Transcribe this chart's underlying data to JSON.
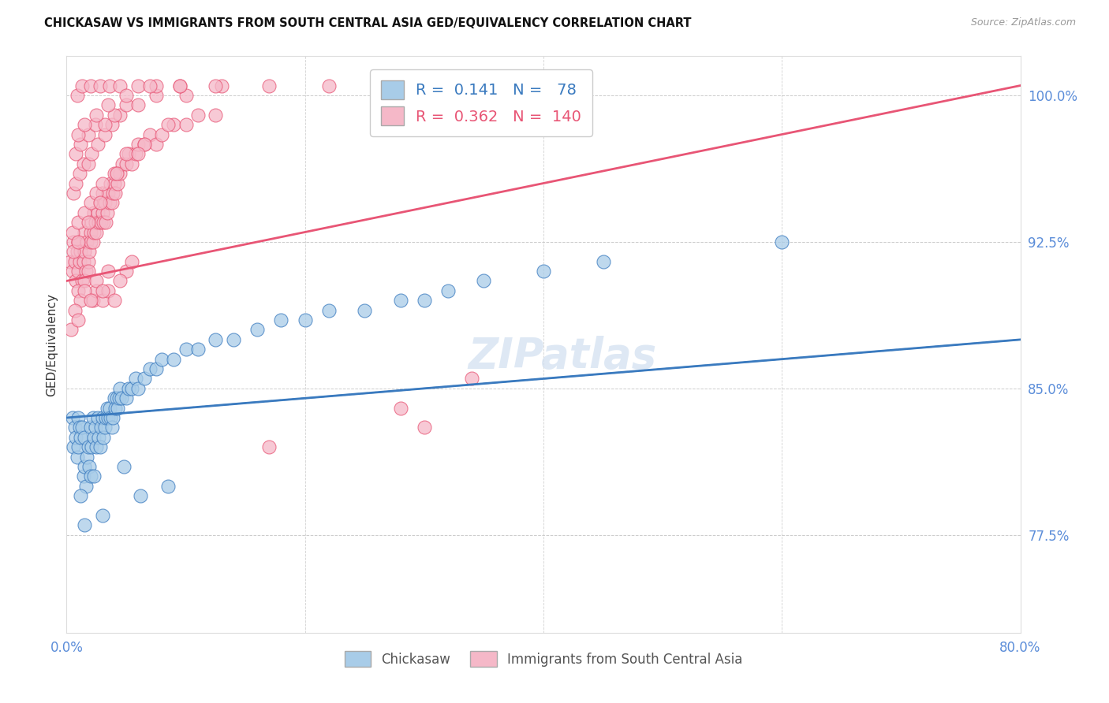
{
  "title": "CHICKASAW VS IMMIGRANTS FROM SOUTH CENTRAL ASIA GED/EQUIVALENCY CORRELATION CHART",
  "source": "Source: ZipAtlas.com",
  "ylabel": "GED/Equivalency",
  "yticks": [
    77.5,
    85.0,
    92.5,
    100.0
  ],
  "ytick_labels": [
    "77.5%",
    "85.0%",
    "92.5%",
    "100.0%"
  ],
  "legend_label1": "Chickasaw",
  "legend_label2": "Immigrants from South Central Asia",
  "R1": 0.141,
  "N1": 78,
  "R2": 0.362,
  "N2": 140,
  "blue_color": "#a8cce8",
  "pink_color": "#f5b8c8",
  "blue_line_color": "#3a7abf",
  "pink_line_color": "#e85575",
  "dashed_line_color": "#7bafd4",
  "xmin": 0.0,
  "xmax": 80.0,
  "ymin": 72.5,
  "ymax": 102.0,
  "blue_scatter_x": [
    0.5,
    0.6,
    0.7,
    0.8,
    0.9,
    1.0,
    1.0,
    1.1,
    1.2,
    1.3,
    1.4,
    1.5,
    1.5,
    1.6,
    1.7,
    1.8,
    1.9,
    2.0,
    2.0,
    2.1,
    2.2,
    2.3,
    2.4,
    2.5,
    2.6,
    2.7,
    2.8,
    2.9,
    3.0,
    3.1,
    3.2,
    3.3,
    3.4,
    3.5,
    3.6,
    3.7,
    3.8,
    3.9,
    4.0,
    4.1,
    4.2,
    4.3,
    4.4,
    4.5,
    4.6,
    5.0,
    5.2,
    5.5,
    5.8,
    6.0,
    6.5,
    7.0,
    7.5,
    8.0,
    9.0,
    10.0,
    11.0,
    12.5,
    14.0,
    16.0,
    18.0,
    20.0,
    22.0,
    25.0,
    28.0,
    30.0,
    32.0,
    35.0,
    40.0,
    45.0,
    1.2,
    1.5,
    2.3,
    3.0,
    4.8,
    6.2,
    8.5,
    60.0
  ],
  "blue_scatter_y": [
    83.5,
    82.0,
    83.0,
    82.5,
    81.5,
    82.0,
    83.5,
    83.0,
    82.5,
    83.0,
    80.5,
    81.0,
    82.5,
    80.0,
    81.5,
    82.0,
    81.0,
    80.5,
    83.0,
    82.0,
    83.5,
    82.5,
    83.0,
    82.0,
    83.5,
    82.5,
    82.0,
    83.0,
    83.5,
    82.5,
    83.0,
    83.5,
    84.0,
    83.5,
    84.0,
    83.5,
    83.0,
    83.5,
    84.5,
    84.0,
    84.5,
    84.0,
    84.5,
    85.0,
    84.5,
    84.5,
    85.0,
    85.0,
    85.5,
    85.0,
    85.5,
    86.0,
    86.0,
    86.5,
    86.5,
    87.0,
    87.0,
    87.5,
    87.5,
    88.0,
    88.5,
    88.5,
    89.0,
    89.0,
    89.5,
    89.5,
    90.0,
    90.5,
    91.0,
    91.5,
    79.5,
    78.0,
    80.5,
    78.5,
    81.0,
    79.5,
    80.0,
    92.5
  ],
  "pink_scatter_x": [
    0.3,
    0.5,
    0.6,
    0.7,
    0.8,
    0.9,
    1.0,
    1.0,
    1.1,
    1.2,
    1.3,
    1.4,
    1.5,
    1.5,
    1.6,
    1.7,
    1.8,
    1.9,
    2.0,
    2.0,
    2.1,
    2.2,
    2.3,
    2.3,
    2.4,
    2.5,
    2.6,
    2.7,
    2.8,
    2.9,
    3.0,
    3.0,
    3.1,
    3.2,
    3.3,
    3.4,
    3.5,
    3.6,
    3.7,
    3.8,
    3.9,
    4.0,
    4.1,
    4.2,
    4.3,
    4.5,
    4.7,
    5.0,
    5.2,
    5.5,
    5.8,
    6.0,
    6.5,
    7.0,
    7.5,
    8.0,
    9.0,
    10.0,
    11.0,
    12.5,
    1.0,
    1.2,
    1.5,
    1.8,
    2.2,
    2.5,
    3.0,
    3.5,
    4.0,
    5.0,
    0.6,
    0.8,
    1.1,
    1.4,
    1.8,
    2.1,
    2.6,
    3.2,
    3.8,
    4.5,
    0.4,
    0.7,
    1.0,
    1.5,
    2.0,
    2.5,
    3.0,
    3.5,
    4.5,
    5.5,
    0.5,
    1.0,
    1.5,
    2.0,
    2.5,
    3.0,
    4.0,
    5.0,
    6.5,
    8.5,
    0.8,
    1.2,
    1.8,
    2.4,
    3.2,
    4.0,
    5.0,
    6.0,
    7.5,
    10.0,
    0.9,
    1.3,
    2.0,
    2.8,
    3.6,
    4.5,
    6.0,
    7.5,
    9.5,
    13.0,
    1.0,
    1.5,
    2.5,
    3.5,
    5.0,
    7.0,
    9.5,
    12.5,
    17.0,
    22.0,
    0.6,
    1.0,
    1.8,
    2.8,
    4.2,
    6.0,
    28.0,
    34.0,
    30.0,
    17.0
  ],
  "pink_scatter_y": [
    91.5,
    91.0,
    92.5,
    91.5,
    90.5,
    92.0,
    92.5,
    91.0,
    91.5,
    92.0,
    90.5,
    91.5,
    92.0,
    93.0,
    91.0,
    92.5,
    91.5,
    92.0,
    93.0,
    92.5,
    93.5,
    92.5,
    93.0,
    94.0,
    93.5,
    93.0,
    94.0,
    93.5,
    94.5,
    93.5,
    94.0,
    95.0,
    93.5,
    94.5,
    93.5,
    94.0,
    95.0,
    94.5,
    95.5,
    94.5,
    95.0,
    95.5,
    95.0,
    96.0,
    95.5,
    96.0,
    96.5,
    96.5,
    97.0,
    96.5,
    97.0,
    97.5,
    97.5,
    98.0,
    97.5,
    98.0,
    98.5,
    98.5,
    99.0,
    99.0,
    90.0,
    89.5,
    90.5,
    91.0,
    89.5,
    90.0,
    89.5,
    90.0,
    89.5,
    91.0,
    95.0,
    95.5,
    96.0,
    96.5,
    96.5,
    97.0,
    97.5,
    98.0,
    98.5,
    99.0,
    88.0,
    89.0,
    88.5,
    90.0,
    89.5,
    90.5,
    90.0,
    91.0,
    90.5,
    91.5,
    93.0,
    93.5,
    94.0,
    94.5,
    95.0,
    95.5,
    96.0,
    97.0,
    97.5,
    98.5,
    97.0,
    97.5,
    98.0,
    98.5,
    98.5,
    99.0,
    99.5,
    99.5,
    100.0,
    100.0,
    100.0,
    100.5,
    100.5,
    100.5,
    100.5,
    100.5,
    100.5,
    100.5,
    100.5,
    100.5,
    98.0,
    98.5,
    99.0,
    99.5,
    100.0,
    100.5,
    100.5,
    100.5,
    100.5,
    100.5,
    92.0,
    92.5,
    93.5,
    94.5,
    96.0,
    97.0,
    84.0,
    85.5,
    83.0,
    82.0
  ]
}
